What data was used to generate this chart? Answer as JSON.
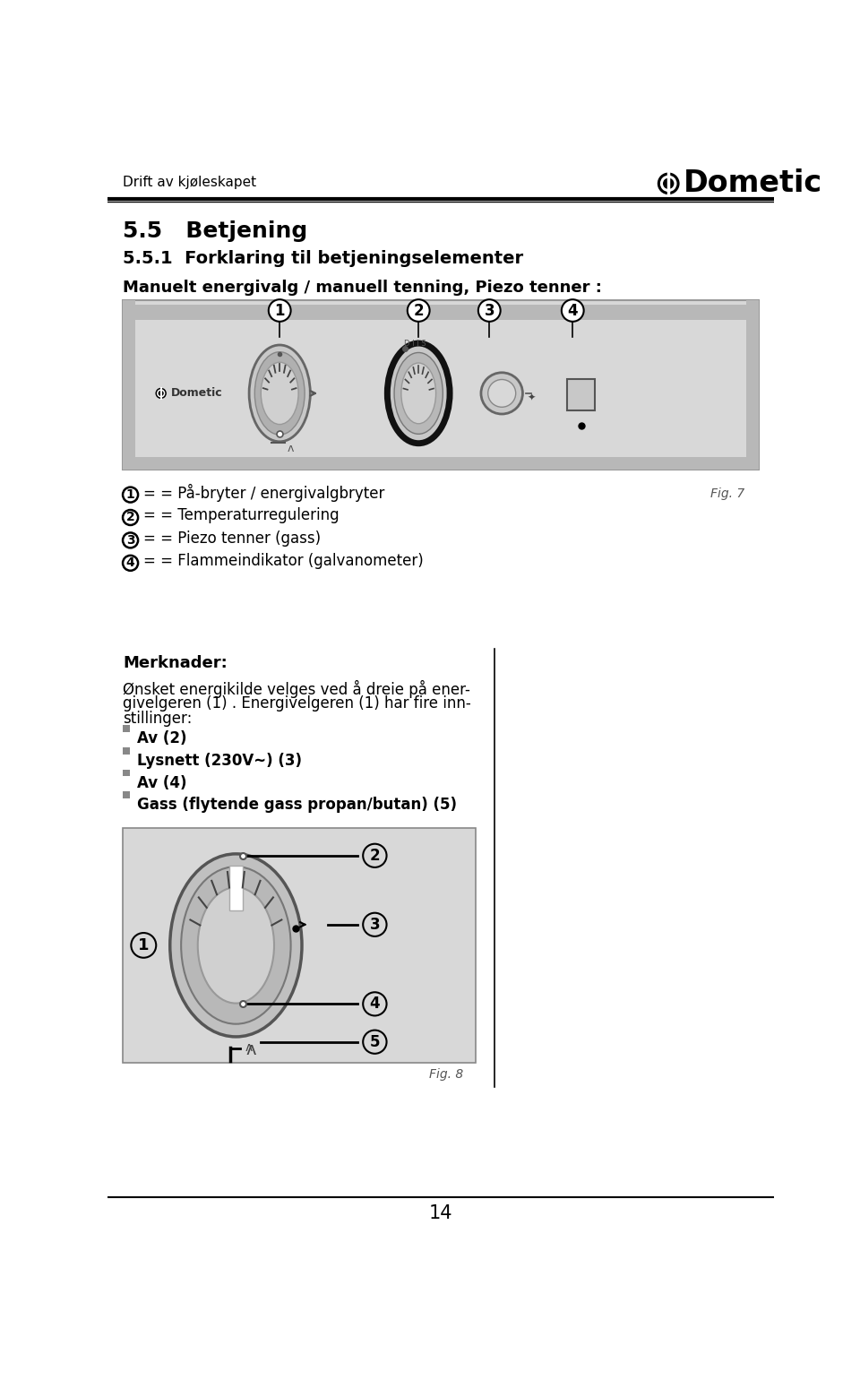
{
  "page_title_left": "Drift av kjøleskapet",
  "section_heading1": "5.5   Betjening",
  "section_heading2": "5.5.1  Forklaring til betjeningselementer",
  "intro_text": "Manuelt energivalg / manuell tenning, Piezo tenner :",
  "label1_circle": "1",
  "label1_text": "= På-bryter / energivalgbryter",
  "label2_circle": "2",
  "label2_text": "= Temperaturregulering",
  "label3_circle": "3",
  "label3_text": "= Piezo tenner (gass)",
  "label4_circle": "4",
  "label4_text": "= Flammeindikator (galvanometer)",
  "fig7_label": "Fig. 7",
  "merknader_heading": "Merknader:",
  "merknader_line1": "Ønsket energikilde velges ved å dreie på ener-",
  "merknader_line2": "givelgeren (1) . Energivelgeren (1) har fire inn-",
  "merknader_line3": "stillinger:",
  "bullet_items": [
    "Av (2)",
    "Lysnett (230V~) (3)",
    "Av (4)",
    "Gass (flytende gass propan/butan) (5)"
  ],
  "fig8_label": "Fig. 8",
  "page_number": "14",
  "bg_color": "#ffffff",
  "panel_color": "#d4d4d4",
  "panel_dark": "#aaaaaa",
  "text_color": "#000000"
}
